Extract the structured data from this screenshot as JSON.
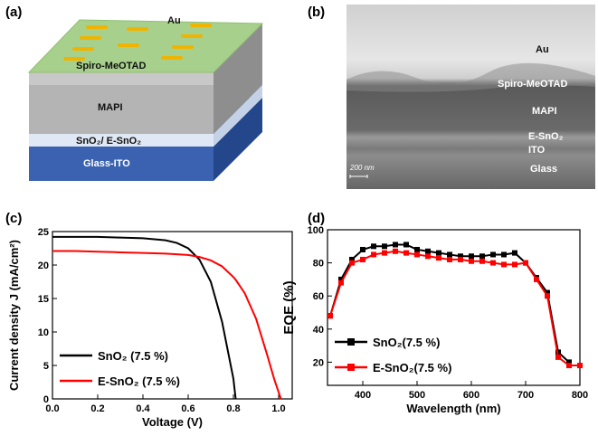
{
  "panels": [
    "(a)",
    "(b)",
    "(c)",
    "(d)"
  ],
  "diagram": {
    "layers": [
      "Au",
      "Spiro-MeOTAD",
      "MAPI",
      "SnO₂/ E-SnO₂",
      "Glass-ITO"
    ]
  },
  "sem": {
    "labels": [
      "Au",
      "Spiro-MeOTAD",
      "MAPI",
      "E-SnO₂",
      "ITO",
      "Glass"
    ],
    "scale_bar": "200 nm"
  },
  "chart_data": [
    {
      "type": "line",
      "xlabel": "Voltage (V)",
      "ylabel": "Current density J (mA/cm²)",
      "x": [
        0,
        0.1,
        0.2,
        0.3,
        0.4,
        0.5,
        0.55,
        0.6,
        0.65,
        0.7,
        0.75,
        0.8,
        0.81,
        0.85,
        0.9,
        0.95,
        0.98,
        1.01
      ],
      "series": [
        {
          "name": "SnO₂ (7.5 %)",
          "color": "#000000",
          "values": [
            24.2,
            24.2,
            24.2,
            24.1,
            24.0,
            23.7,
            23.3,
            22.5,
            20.8,
            17.5,
            11.5,
            3,
            0,
            null,
            null,
            null,
            null,
            null
          ]
        },
        {
          "name": "E-SnO₂ (7.5 %)",
          "color": "#ff0000",
          "values": [
            22.1,
            22.1,
            22.0,
            21.9,
            21.8,
            21.7,
            21.6,
            21.5,
            21.2,
            20.7,
            19.8,
            18.2,
            17.8,
            15.8,
            12,
            6.5,
            3,
            0
          ]
        }
      ],
      "xlim": [
        0,
        1.06
      ],
      "ylim": [
        0,
        25
      ],
      "xticks": [
        {
          "value": 0,
          "label": "0.0"
        },
        0.2,
        0.4,
        0.6,
        0.8,
        {
          "value": 1,
          "label": "1.0"
        }
      ],
      "yticks": [
        0,
        5,
        10,
        15,
        20,
        25
      ],
      "legend": "lower left",
      "markers": "none"
    },
    {
      "type": "line",
      "xlabel": "Wavelength (nm)",
      "ylabel": "EQE (%)",
      "x": [
        340,
        360,
        380,
        400,
        420,
        440,
        460,
        480,
        500,
        520,
        540,
        560,
        580,
        600,
        620,
        640,
        660,
        680,
        700,
        720,
        740,
        760,
        780,
        800
      ],
      "series": [
        {
          "name": "SnO₂(7.5 %)",
          "color": "#000000",
          "values": [
            48,
            70,
            82,
            88,
            90,
            90,
            91,
            91,
            88,
            87,
            86,
            85,
            84,
            84,
            84,
            85,
            85,
            86,
            80,
            71,
            62,
            26,
            20,
            null
          ]
        },
        {
          "name": "E-SnO₂(7.5 %)",
          "color": "#ff0000",
          "values": [
            48,
            68,
            80,
            82,
            85,
            86,
            87,
            86,
            85,
            84,
            83,
            82,
            82,
            81,
            81,
            80,
            79,
            79,
            80,
            70,
            60,
            23,
            18,
            18
          ]
        }
      ],
      "xlim": [
        335,
        800
      ],
      "ylim": [
        6,
        100
      ],
      "xticks": [
        400,
        500,
        600,
        700,
        800
      ],
      "yticks": [
        20,
        40,
        60,
        80,
        100
      ],
      "legend": "lower left",
      "markers": "square"
    }
  ]
}
